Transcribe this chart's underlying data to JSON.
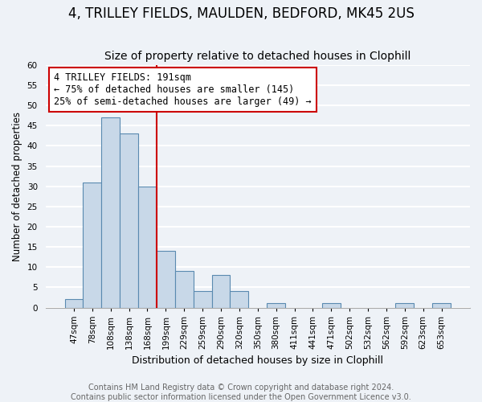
{
  "title": "4, TRILLEY FIELDS, MAULDEN, BEDFORD, MK45 2US",
  "subtitle": "Size of property relative to detached houses in Clophill",
  "xlabel": "Distribution of detached houses by size in Clophill",
  "ylabel": "Number of detached properties",
  "bar_labels": [
    "47sqm",
    "78sqm",
    "108sqm",
    "138sqm",
    "168sqm",
    "199sqm",
    "229sqm",
    "259sqm",
    "290sqm",
    "320sqm",
    "350sqm",
    "380sqm",
    "411sqm",
    "441sqm",
    "471sqm",
    "502sqm",
    "532sqm",
    "562sqm",
    "592sqm",
    "623sqm",
    "653sqm"
  ],
  "bar_values": [
    2,
    31,
    47,
    43,
    30,
    14,
    9,
    4,
    8,
    4,
    0,
    1,
    0,
    0,
    1,
    0,
    0,
    0,
    1,
    0,
    1
  ],
  "bar_color": "#c8d8e8",
  "bar_edge_color": "#5a8ab0",
  "red_line_index": 5,
  "annotation_text": "4 TRILLEY FIELDS: 191sqm\n← 75% of detached houses are smaller (145)\n25% of semi-detached houses are larger (49) →",
  "annotation_box_color": "#ffffff",
  "annotation_box_edge_color": "#cc0000",
  "ylim": [
    0,
    60
  ],
  "yticks": [
    0,
    5,
    10,
    15,
    20,
    25,
    30,
    35,
    40,
    45,
    50,
    55,
    60
  ],
  "footnote1": "Contains HM Land Registry data © Crown copyright and database right 2024.",
  "footnote2": "Contains public sector information licensed under the Open Government Licence v3.0.",
  "background_color": "#eef2f7",
  "plot_background_color": "#eef2f7",
  "grid_color": "#ffffff",
  "title_fontsize": 12,
  "subtitle_fontsize": 10,
  "annotation_fontsize": 8.5,
  "footnote_fontsize": 7,
  "tick_labelsize": 7.5
}
